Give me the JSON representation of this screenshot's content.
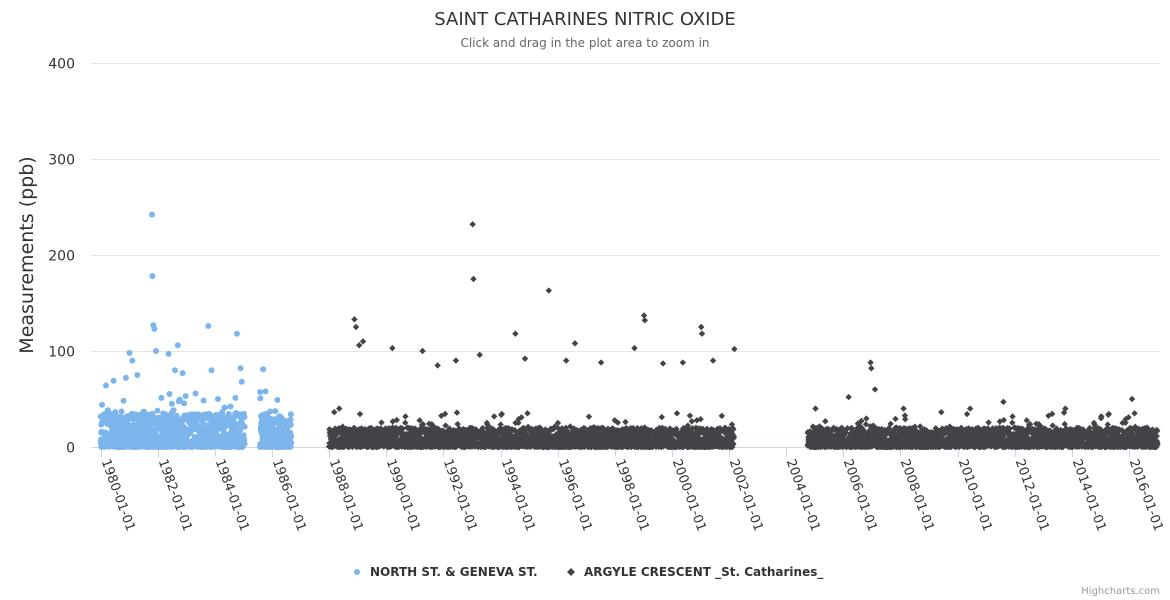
{
  "chart_data": {
    "type": "scatter",
    "title": "SAINT CATHARINES NITRIC OXIDE",
    "subtitle": "Click and drag in the plot area to zoom in",
    "ylabel": "Measurements (ppb)",
    "xlabel": "",
    "ylim": [
      0,
      400
    ],
    "yticks": [
      0,
      100,
      200,
      300,
      400
    ],
    "xlim": [
      "1979-09-01",
      "2017-02-01"
    ],
    "xticks": [
      "1980-01-01",
      "1982-01-01",
      "1984-01-01",
      "1986-01-01",
      "1988-01-01",
      "1990-01-01",
      "1992-01-01",
      "1994-01-01",
      "1996-01-01",
      "1998-01-01",
      "2000-01-01",
      "2002-01-01",
      "2004-01-01",
      "2006-01-01",
      "2008-01-01",
      "2010-01-01",
      "2012-01-01",
      "2014-01-01",
      "2016-01-01"
    ],
    "grid": true,
    "legend_position": "bottom-center",
    "series": [
      {
        "name": "NORTH ST. & GENEVA ST.",
        "color": "#7cb5ec",
        "marker": "circle",
        "periods": [
          [
            "1980-01-01",
            "1985-01-15"
          ],
          [
            "1985-08-01",
            "1986-09-01"
          ]
        ],
        "typical_range": [
          0,
          35
        ],
        "peaks": [
          [
            "1980-01-20",
            44
          ],
          [
            "1980-03-10",
            64
          ],
          [
            "1980-06-15",
            69
          ],
          [
            "1980-11-20",
            72
          ],
          [
            "1981-01-05",
            98
          ],
          [
            "1981-02-10",
            90
          ],
          [
            "1981-04-15",
            75
          ],
          [
            "1981-09-10",
            28
          ],
          [
            "1981-10-20",
            242
          ],
          [
            "1981-10-25",
            178
          ],
          [
            "1981-11-05",
            127
          ],
          [
            "1981-11-20",
            123
          ],
          [
            "1981-12-10",
            100
          ],
          [
            "1982-05-20",
            97
          ],
          [
            "1982-08-10",
            80
          ],
          [
            "1982-09-15",
            106
          ],
          [
            "1982-11-15",
            77
          ],
          [
            "1983-10-10",
            126
          ],
          [
            "1983-11-20",
            80
          ],
          [
            "1984-02-10",
            50
          ],
          [
            "1984-10-10",
            118
          ],
          [
            "1984-11-25",
            82
          ],
          [
            "1984-12-10",
            68
          ],
          [
            "1985-09-10",
            81
          ],
          [
            "1985-10-10",
            58
          ],
          [
            "1986-03-10",
            49
          ]
        ]
      },
      {
        "name": "ARGYLE CRESCENT _St. Catharines_",
        "color": "#434348",
        "marker": "diamond",
        "periods": [
          [
            "1988-01-01",
            "2002-03-01"
          ],
          [
            "2004-10-01",
            "2017-01-01"
          ]
        ],
        "typical_range": [
          0,
          20
        ],
        "peaks": [
          [
            "1988-05-10",
            40
          ],
          [
            "1988-11-20",
            133
          ],
          [
            "1988-12-10",
            125
          ],
          [
            "1989-01-20",
            106
          ],
          [
            "1989-03-10",
            110
          ],
          [
            "1990-03-20",
            103
          ],
          [
            "1991-04-10",
            100
          ],
          [
            "1991-10-20",
            85
          ],
          [
            "1992-06-10",
            90
          ],
          [
            "1993-01-10",
            232
          ],
          [
            "1993-01-20",
            175
          ],
          [
            "1993-04-10",
            96
          ],
          [
            "1994-07-10",
            118
          ],
          [
            "1994-11-10",
            92
          ],
          [
            "1995-09-10",
            163
          ],
          [
            "1996-04-20",
            90
          ],
          [
            "1996-08-10",
            108
          ],
          [
            "1997-07-10",
            88
          ],
          [
            "1998-09-10",
            103
          ],
          [
            "1999-01-10",
            137
          ],
          [
            "1999-01-20",
            132
          ],
          [
            "1999-09-10",
            87
          ],
          [
            "2000-05-20",
            88
          ],
          [
            "2001-01-10",
            125
          ],
          [
            "2001-01-20",
            118
          ],
          [
            "2001-06-10",
            90
          ],
          [
            "2002-03-10",
            102
          ],
          [
            "2005-01-10",
            40
          ],
          [
            "2006-03-10",
            52
          ],
          [
            "2006-12-15",
            88
          ],
          [
            "2006-12-25",
            82
          ],
          [
            "2007-02-10",
            60
          ],
          [
            "2008-02-10",
            40
          ],
          [
            "2010-06-10",
            40
          ],
          [
            "2011-08-10",
            47
          ],
          [
            "2013-10-10",
            40
          ],
          [
            "2015-01-10",
            30
          ],
          [
            "2016-02-10",
            50
          ]
        ]
      }
    ]
  },
  "credits": "Highcharts.com"
}
